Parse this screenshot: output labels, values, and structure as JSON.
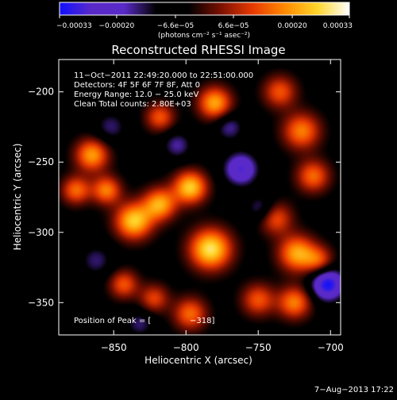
{
  "chart_data": {
    "type": "heatmap",
    "title": "Reconstructed RHESSI Image",
    "xlabel": "Heliocentric X (arcsec)",
    "ylabel": "Heliocentric Y (arcsec)",
    "xlim": [
      -888,
      -693
    ],
    "ylim": [
      -373,
      -177
    ],
    "x_ticks": [
      -850,
      -800,
      -750,
      -700
    ],
    "x_tick_labels": [
      "−850",
      "−800",
      "−750",
      "−700"
    ],
    "y_ticks": [
      -200,
      -250,
      -300,
      -350
    ],
    "y_tick_labels": [
      "−200",
      "−250",
      "−300",
      "−350"
    ],
    "colorbar": {
      "range": [
        -0.00033,
        0.00033
      ],
      "ticks": [
        -0.00033,
        -0.0002,
        -6.6e-05,
        6.6e-05,
        0.0002,
        0.00033
      ],
      "tick_labels": [
        "−0.00033",
        "−0.00020",
        "−6.6e−05",
        "6.6e−05",
        "0.00020",
        "0.00033"
      ],
      "units_label": "(photons cm⁻² s⁻¹ asec⁻²)",
      "colormap": [
        "#1010ff",
        "#5a2ac8",
        "#5a2ac8",
        "#000000",
        "#000000",
        "#7a1000",
        "#e83a00",
        "#ff8a00",
        "#ffd52a",
        "#ffffff"
      ]
    },
    "annotations": [
      "11−Oct−2011 22:49:20.000 to 22:51:00.000",
      "Detectors: 4F 5F 6F 7F 8F, Att 0",
      "Energy Range: 12.0 − 25.0 keV",
      "Clean    Total counts: 2.80E+03"
    ],
    "peak_label": "Position of Peak = [",
    "peak_value_tail": "−318]",
    "sources": [
      {
        "x": -865,
        "y": -245,
        "amp": 0.00025,
        "s": 8
      },
      {
        "x": -876,
        "y": -270,
        "amp": 0.0002,
        "s": 7
      },
      {
        "x": -855,
        "y": -270,
        "amp": 0.00022,
        "s": 7
      },
      {
        "x": -836,
        "y": -292,
        "amp": 0.0003,
        "s": 9
      },
      {
        "x": -818,
        "y": -280,
        "amp": 0.00026,
        "s": 8
      },
      {
        "x": -797,
        "y": -268,
        "amp": 0.0003,
        "s": 8
      },
      {
        "x": -783,
        "y": -312,
        "amp": 0.00033,
        "s": 10
      },
      {
        "x": -818,
        "y": -218,
        "amp": 0.00018,
        "s": 7
      },
      {
        "x": -780,
        "y": -208,
        "amp": 0.00026,
        "s": 8
      },
      {
        "x": -797,
        "y": -358,
        "amp": 0.0002,
        "s": 8
      },
      {
        "x": -822,
        "y": -347,
        "amp": 0.00016,
        "s": 7
      },
      {
        "x": -843,
        "y": -337,
        "amp": 0.00018,
        "s": 7
      },
      {
        "x": -735,
        "y": -200,
        "amp": 0.00018,
        "s": 8
      },
      {
        "x": -720,
        "y": -228,
        "amp": 0.00022,
        "s": 9
      },
      {
        "x": -712,
        "y": -260,
        "amp": 0.0002,
        "s": 8
      },
      {
        "x": -738,
        "y": -290,
        "amp": 0.00018,
        "s": 8
      },
      {
        "x": -723,
        "y": -315,
        "amp": 0.00026,
        "s": 9
      },
      {
        "x": -750,
        "y": -348,
        "amp": 0.00018,
        "s": 8
      },
      {
        "x": -725,
        "y": -350,
        "amp": 0.00022,
        "s": 8
      },
      {
        "x": -708,
        "y": -320,
        "amp": 0.00016,
        "s": 7
      },
      {
        "x": -762,
        "y": -255,
        "amp": -0.00022,
        "s": 8
      },
      {
        "x": -702,
        "y": -337,
        "amp": -0.00028,
        "s": 8
      },
      {
        "x": -748,
        "y": -283,
        "amp": -0.00012,
        "s": 7
      },
      {
        "x": -852,
        "y": -225,
        "amp": -0.0001,
        "s": 8
      },
      {
        "x": -806,
        "y": -238,
        "amp": -0.00012,
        "s": 7
      },
      {
        "x": -862,
        "y": -320,
        "amp": -0.0001,
        "s": 8
      },
      {
        "x": -770,
        "y": -225,
        "amp": -0.00012,
        "s": 7
      },
      {
        "x": -832,
        "y": -365,
        "amp": -0.0001,
        "s": 7
      }
    ]
  },
  "footer": {
    "timestamp": "7−Aug−2013 17:22"
  }
}
